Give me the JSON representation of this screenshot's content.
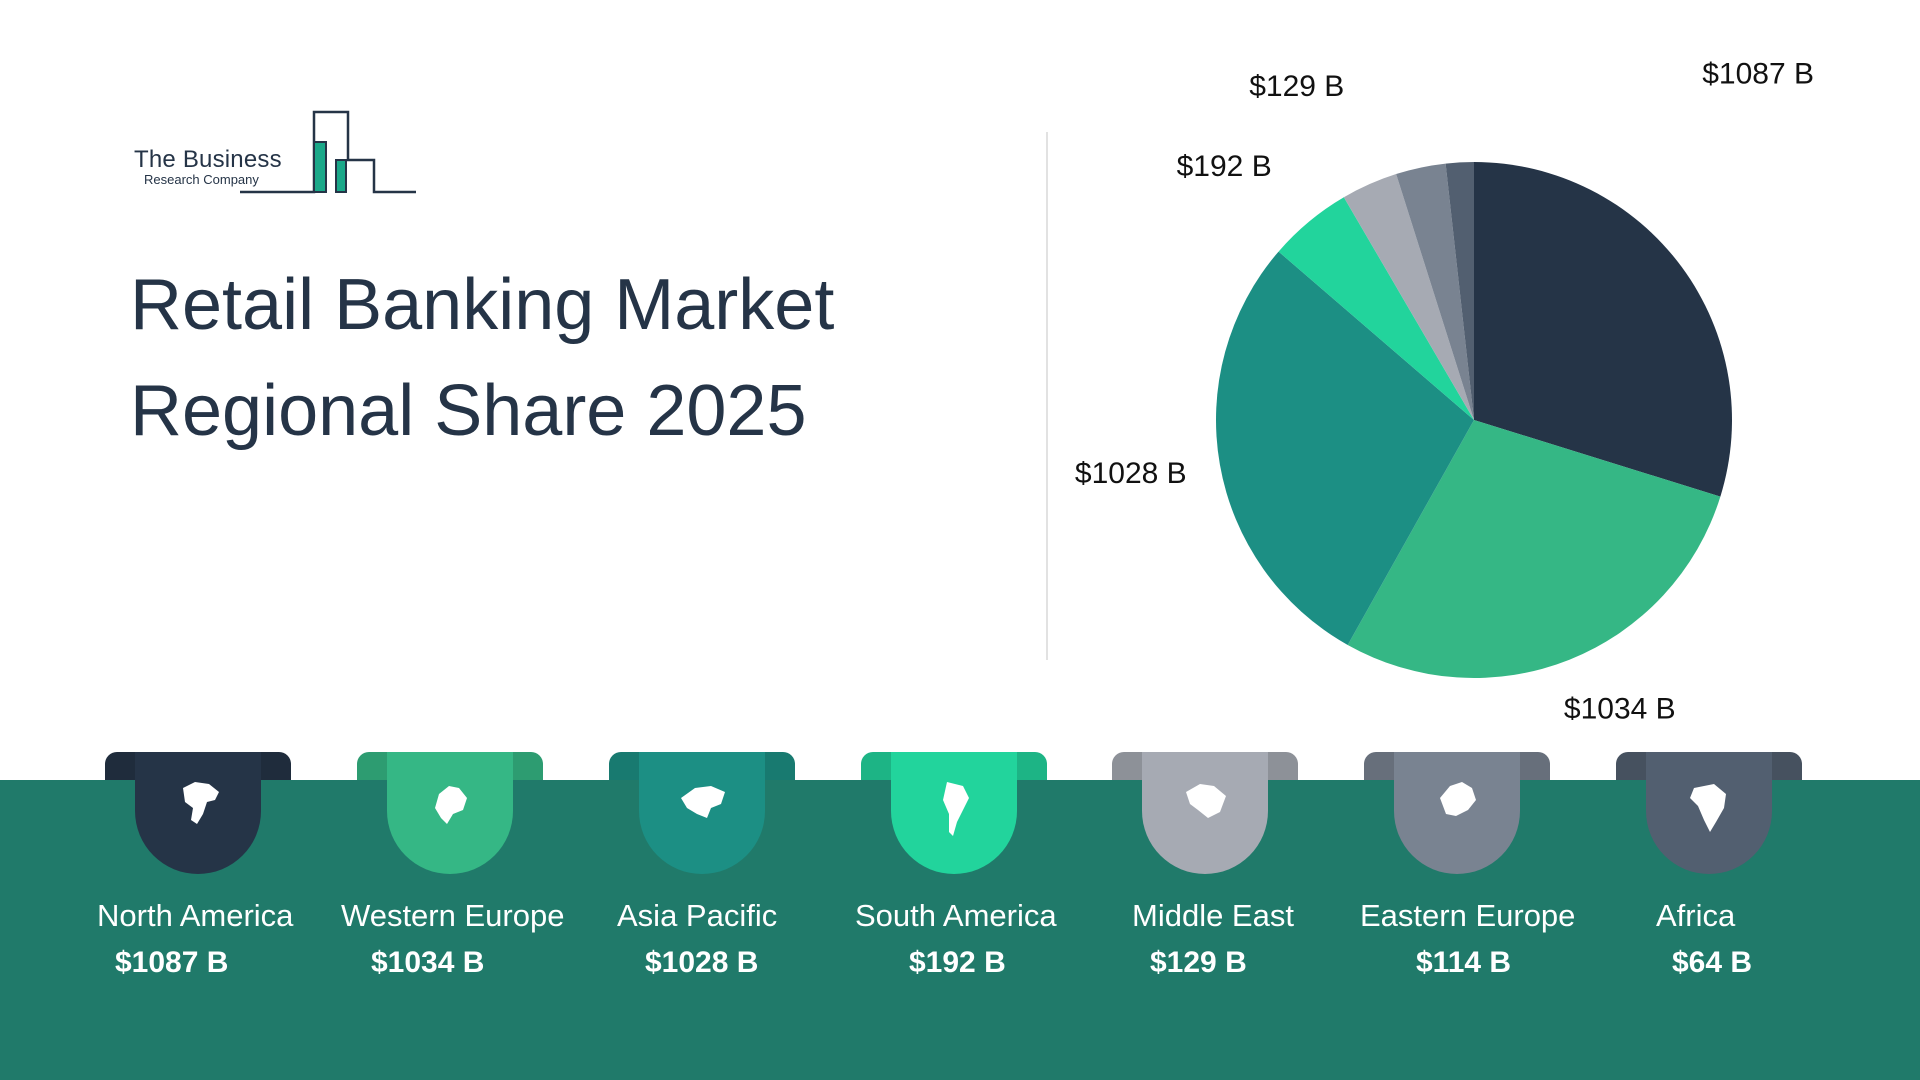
{
  "logo": {
    "line1": "The Business",
    "line2": "Research Company"
  },
  "title": {
    "line1": "Retail Banking Market",
    "line2": "Regional Share 2025"
  },
  "chart_data": {
    "type": "pie",
    "title": "Retail Banking Market Regional Share 2025",
    "unit": "$ B",
    "slices": [
      {
        "region": "North America",
        "value": 1087,
        "label": "$1087 B",
        "color": "#253447"
      },
      {
        "region": "Western Europe",
        "value": 1034,
        "label": "$1034 B",
        "color": "#35b785"
      },
      {
        "region": "Asia Pacific",
        "value": 1028,
        "label": "$1028 B",
        "color": "#1c8f84"
      },
      {
        "region": "South America",
        "value": 192,
        "label": "$192 B",
        "color": "#22d49c"
      },
      {
        "region": "Middle East",
        "value": 129,
        "label": "$129 B",
        "color": "#a6aab3"
      },
      {
        "region": "Eastern Europe",
        "value": 114,
        "label": "$114 B",
        "color": "#798391"
      },
      {
        "region": "Africa",
        "value": 64,
        "label": "$64 B",
        "color": "#525f70"
      }
    ]
  },
  "regions": [
    {
      "name": "North America",
      "value": "$1087 B",
      "icon": "north-america-map-icon",
      "color": "#253447"
    },
    {
      "name": "Western Europe",
      "value": "$1034 B",
      "icon": "western-europe-map-icon",
      "color": "#35b785"
    },
    {
      "name": "Asia Pacific",
      "value": "$1028 B",
      "icon": "asia-pacific-map-icon",
      "color": "#1c8f84"
    },
    {
      "name": "South America",
      "value": "$192 B",
      "icon": "south-america-map-icon",
      "color": "#22d49c"
    },
    {
      "name": "Middle East",
      "value": "$129 B",
      "icon": "middle-east-map-icon",
      "color": "#a6aab3"
    },
    {
      "name": "Eastern Europe",
      "value": "$114 B",
      "icon": "eastern-europe-map-icon",
      "color": "#798391"
    },
    {
      "name": "Africa",
      "value": "$64 B",
      "icon": "africa-map-icon",
      "color": "#525f70"
    }
  ],
  "colors": {
    "band": "#207a6a",
    "text_dark": "#253447"
  }
}
